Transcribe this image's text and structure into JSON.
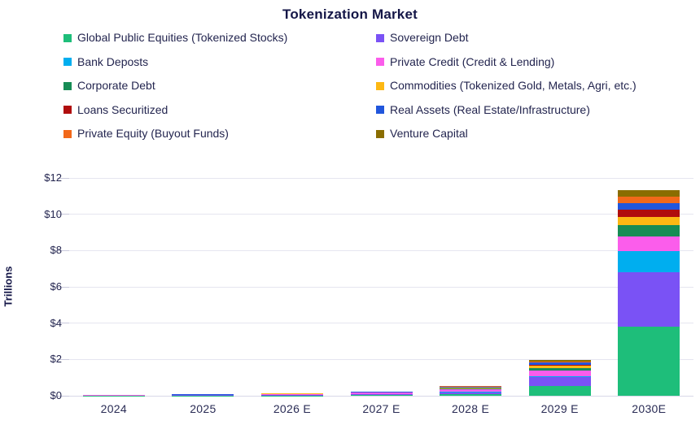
{
  "title": "Tokenization Market",
  "y_axis": {
    "label": "Trillions",
    "ticks": [
      "$0",
      "$2",
      "$4",
      "$6",
      "$8",
      "$10",
      "$12"
    ],
    "max": 12
  },
  "colors": {
    "text": "#23254F",
    "title": "#141647",
    "gridline": "#E5E5F0"
  },
  "chart_data": {
    "type": "bar",
    "stacked": true,
    "title": "Tokenization Market",
    "xlabel": "",
    "ylabel": "Trillions",
    "ylim": [
      0,
      12
    ],
    "y_tick_step": 2,
    "grid": true,
    "legend_position": "top-two-columns",
    "units": "USD trillions",
    "categories": [
      "2024",
      "2025",
      "2026 E",
      "2027 E",
      "2028 E",
      "2029 E",
      "2030E"
    ],
    "series": [
      {
        "name": "Global Public Equities (Tokenized Stocks)",
        "color": "#1EBE7A",
        "values": [
          0.01,
          0.015,
          0.02,
          0.03,
          0.08,
          0.55,
          3.8
        ]
      },
      {
        "name": "Sovereign Debt",
        "color": "#7A52F5",
        "values": [
          0.005,
          0.01,
          0.03,
          0.04,
          0.12,
          0.5,
          3.0
        ]
      },
      {
        "name": "Bank Deposts",
        "color": "#00AEEF",
        "values": [
          0.005,
          0.005,
          0.01,
          0.01,
          0.02,
          0.03,
          1.15
        ]
      },
      {
        "name": "Private Credit (Credit & Lending)",
        "color": "#FB5DEB",
        "values": [
          0.01,
          0.015,
          0.03,
          0.08,
          0.15,
          0.33,
          0.85
        ]
      },
      {
        "name": "Corporate Debt",
        "color": "#178C55",
        "values": [
          0.005,
          0.005,
          0.01,
          0.01,
          0.03,
          0.1,
          0.6
        ]
      },
      {
        "name": "Commodities (Tokenized Gold, Metals, Agri, etc.)",
        "color": "#FDB813",
        "values": [
          0.01,
          0.01,
          0.02,
          0.02,
          0.05,
          0.15,
          0.45
        ]
      },
      {
        "name": "Loans Securitized",
        "color": "#B00D0D",
        "values": [
          0.002,
          0.003,
          0.005,
          0.005,
          0.01,
          0.03,
          0.4
        ]
      },
      {
        "name": "Real Assets (Real Estate/Infrastructure)",
        "color": "#2156DC",
        "values": [
          0.005,
          0.01,
          0.01,
          0.02,
          0.05,
          0.15,
          0.35
        ]
      },
      {
        "name": "Private Equity (Buyout Funds)",
        "color": "#F2691A",
        "values": [
          0.003,
          0.005,
          0.01,
          0.01,
          0.02,
          0.06,
          0.37
        ]
      },
      {
        "name": "Venture Capital",
        "color": "#8A6D00",
        "values": [
          0.003,
          0.005,
          0.01,
          0.01,
          0.02,
          0.08,
          0.35
        ]
      }
    ],
    "approx_totals": [
      0.058,
      0.083,
      0.155,
      0.235,
      0.55,
      1.98,
      11.32
    ]
  }
}
